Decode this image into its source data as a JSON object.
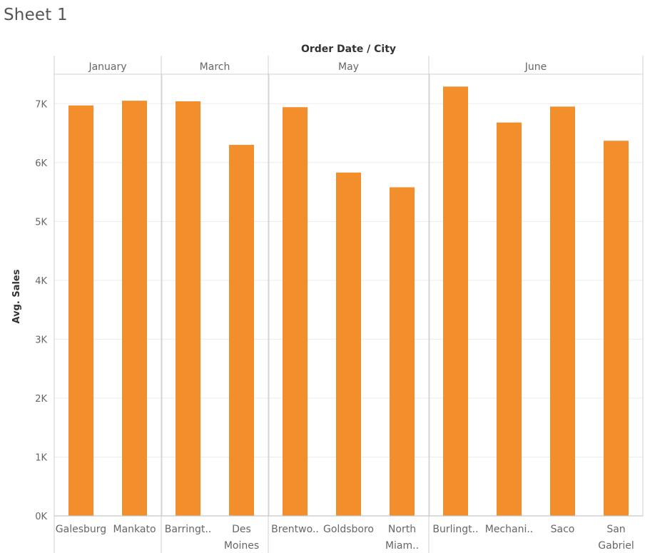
{
  "sheet": {
    "title": "Sheet 1"
  },
  "chart_data": {
    "type": "bar",
    "title": "",
    "column_header": "Order Date / City",
    "ylabel": "Avg. Sales",
    "ylim": [
      0,
      7500
    ],
    "yticks": [
      0,
      1000,
      2000,
      3000,
      4000,
      5000,
      6000,
      7000
    ],
    "ytick_labels": [
      "0K",
      "1K",
      "2K",
      "3K",
      "4K",
      "5K",
      "6K",
      "7K"
    ],
    "bar_color": "#f28e2b",
    "grid": true,
    "groups": [
      {
        "label": "January",
        "bars": [
          {
            "city": "Galesburg",
            "label_lines": [
              "Galesburg"
            ],
            "value": 6970
          },
          {
            "city": "Mankato",
            "label_lines": [
              "Mankato"
            ],
            "value": 7050
          }
        ]
      },
      {
        "label": "March",
        "bars": [
          {
            "city": "Barringt..",
            "label_lines": [
              "Barringt.."
            ],
            "value": 7040
          },
          {
            "city": "Des Moines",
            "label_lines": [
              "Des",
              "Moines"
            ],
            "value": 6300
          }
        ]
      },
      {
        "label": "May",
        "bars": [
          {
            "city": "Brentwo..",
            "label_lines": [
              "Brentwo.."
            ],
            "value": 6940
          },
          {
            "city": "Goldsboro",
            "label_lines": [
              "Goldsboro"
            ],
            "value": 5830
          },
          {
            "city": "North Miam..",
            "label_lines": [
              "North",
              "Miam.."
            ],
            "value": 5580
          }
        ]
      },
      {
        "label": "June",
        "bars": [
          {
            "city": "Burlingt..",
            "label_lines": [
              "Burlingt.."
            ],
            "value": 7290
          },
          {
            "city": "Mechani..",
            "label_lines": [
              "Mechani.."
            ],
            "value": 6680
          },
          {
            "city": "Saco",
            "label_lines": [
              "Saco"
            ],
            "value": 6950
          },
          {
            "city": "San Gabriel",
            "label_lines": [
              "San",
              "Gabriel"
            ],
            "value": 6370
          }
        ]
      }
    ]
  }
}
